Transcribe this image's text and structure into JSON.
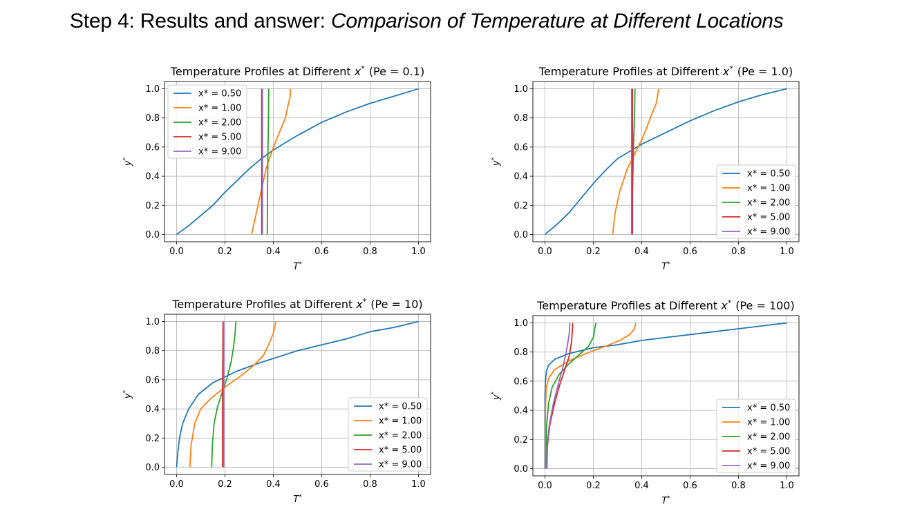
{
  "slide": {
    "title_prefix": "Step 4: Results and answer: ",
    "title_emph": "Comparison of Temperature at Different Locations"
  },
  "chart_data": [
    {
      "type": "line",
      "title_text": "Temperature Profiles at Different",
      "title_var": "x",
      "title_sup": "*",
      "title_pe": "(Pe = 0.1)",
      "xlabel": "T",
      "xlabel_sup": "*",
      "ylabel": "y",
      "ylabel_sup": "*",
      "xlim": [
        0.0,
        1.0
      ],
      "ylim": [
        0.0,
        1.0
      ],
      "xticks": [
        "0.0",
        "0.2",
        "0.4",
        "0.6",
        "0.8",
        "1.0"
      ],
      "yticks": [
        "0.0",
        "0.2",
        "0.4",
        "0.6",
        "0.8",
        "1.0"
      ],
      "grid": true,
      "legend_position": "upper-left",
      "series": [
        {
          "name": "x* = 0.50",
          "color": "#1f77b4",
          "points": [
            [
              0.0,
              0.0
            ],
            [
              0.05,
              0.06
            ],
            [
              0.1,
              0.13
            ],
            [
              0.15,
              0.2
            ],
            [
              0.2,
              0.29
            ],
            [
              0.25,
              0.37
            ],
            [
              0.3,
              0.45
            ],
            [
              0.35,
              0.52
            ],
            [
              0.4,
              0.58
            ],
            [
              0.5,
              0.68
            ],
            [
              0.6,
              0.77
            ],
            [
              0.7,
              0.84
            ],
            [
              0.8,
              0.9
            ],
            [
              0.9,
              0.95
            ],
            [
              1.0,
              1.0
            ]
          ]
        },
        {
          "name": "x* = 1.00",
          "color": "#ff7f0e",
          "points": [
            [
              0.31,
              0.0
            ],
            [
              0.33,
              0.15
            ],
            [
              0.35,
              0.3
            ],
            [
              0.37,
              0.45
            ],
            [
              0.39,
              0.55
            ],
            [
              0.41,
              0.64
            ],
            [
              0.43,
              0.72
            ],
            [
              0.45,
              0.8
            ],
            [
              0.46,
              0.88
            ],
            [
              0.47,
              0.95
            ],
            [
              0.47,
              1.0
            ]
          ]
        },
        {
          "name": "x* = 2.00",
          "color": "#2ca02c",
          "points": [
            [
              0.375,
              0.0
            ],
            [
              0.376,
              0.3
            ],
            [
              0.378,
              0.6
            ],
            [
              0.38,
              0.8
            ],
            [
              0.381,
              1.0
            ]
          ]
        },
        {
          "name": "x* = 5.00",
          "color": "#d62728",
          "points": [
            [
              0.352,
              0.0
            ],
            [
              0.352,
              1.0
            ]
          ]
        },
        {
          "name": "x* = 9.00",
          "color": "#9467bd",
          "points": [
            [
              0.355,
              0.0
            ],
            [
              0.355,
              1.0
            ]
          ]
        }
      ]
    },
    {
      "type": "line",
      "title_text": "Temperature Profiles at Different",
      "title_var": "x",
      "title_sup": "*",
      "title_pe": "(Pe = 1.0)",
      "xlabel": "T",
      "xlabel_sup": "*",
      "ylabel": "y",
      "ylabel_sup": "*",
      "xlim": [
        0.0,
        1.0
      ],
      "ylim": [
        0.0,
        1.0
      ],
      "xticks": [
        "0.0",
        "0.2",
        "0.4",
        "0.6",
        "0.8",
        "1.0"
      ],
      "yticks": [
        "0.0",
        "0.2",
        "0.4",
        "0.6",
        "0.8",
        "1.0"
      ],
      "grid": true,
      "legend_position": "lower-right",
      "series": [
        {
          "name": "x* = 0.50",
          "color": "#1f77b4",
          "points": [
            [
              0.0,
              0.0
            ],
            [
              0.05,
              0.07
            ],
            [
              0.1,
              0.15
            ],
            [
              0.15,
              0.25
            ],
            [
              0.2,
              0.35
            ],
            [
              0.25,
              0.44
            ],
            [
              0.3,
              0.52
            ],
            [
              0.35,
              0.57
            ],
            [
              0.4,
              0.62
            ],
            [
              0.5,
              0.7
            ],
            [
              0.6,
              0.78
            ],
            [
              0.7,
              0.85
            ],
            [
              0.8,
              0.91
            ],
            [
              0.9,
              0.96
            ],
            [
              1.0,
              1.0
            ]
          ]
        },
        {
          "name": "x* = 1.00",
          "color": "#ff7f0e",
          "points": [
            [
              0.28,
              0.0
            ],
            [
              0.29,
              0.15
            ],
            [
              0.31,
              0.3
            ],
            [
              0.34,
              0.45
            ],
            [
              0.37,
              0.55
            ],
            [
              0.4,
              0.65
            ],
            [
              0.42,
              0.73
            ],
            [
              0.44,
              0.82
            ],
            [
              0.46,
              0.9
            ],
            [
              0.47,
              1.0
            ]
          ]
        },
        {
          "name": "x* = 2.00",
          "color": "#2ca02c",
          "points": [
            [
              0.36,
              0.0
            ],
            [
              0.362,
              0.3
            ],
            [
              0.366,
              0.6
            ],
            [
              0.37,
              0.8
            ],
            [
              0.372,
              1.0
            ]
          ]
        },
        {
          "name": "x* = 5.00",
          "color": "#d62728",
          "points": [
            [
              0.362,
              0.0
            ],
            [
              0.362,
              1.0
            ]
          ]
        },
        {
          "name": "x* = 9.00",
          "color": "#9467bd",
          "points": [
            [
              0.358,
              0.0
            ],
            [
              0.358,
              1.0
            ]
          ]
        }
      ]
    },
    {
      "type": "line",
      "title_text": "Temperature Profiles at Different",
      "title_var": "x",
      "title_sup": "*",
      "title_pe": "(Pe = 10)",
      "xlabel": "T",
      "xlabel_sup": "*",
      "ylabel": "y",
      "ylabel_sup": "*",
      "xlim": [
        0.0,
        1.0
      ],
      "ylim": [
        0.0,
        1.0
      ],
      "xticks": [
        "0.0",
        "0.2",
        "0.4",
        "0.6",
        "0.8",
        "1.0"
      ],
      "yticks": [
        "0.0",
        "0.2",
        "0.4",
        "0.6",
        "0.8",
        "1.0"
      ],
      "grid": true,
      "legend_position": "lower-right",
      "series": [
        {
          "name": "x* = 0.50",
          "color": "#1f77b4",
          "points": [
            [
              0.0,
              0.0
            ],
            [
              0.005,
              0.1
            ],
            [
              0.012,
              0.2
            ],
            [
              0.025,
              0.3
            ],
            [
              0.05,
              0.4
            ],
            [
              0.09,
              0.5
            ],
            [
              0.15,
              0.58
            ],
            [
              0.25,
              0.66
            ],
            [
              0.35,
              0.72
            ],
            [
              0.5,
              0.8
            ],
            [
              0.6,
              0.84
            ],
            [
              0.7,
              0.88
            ],
            [
              0.8,
              0.93
            ],
            [
              0.9,
              0.96
            ],
            [
              1.0,
              1.0
            ]
          ]
        },
        {
          "name": "x* = 1.00",
          "color": "#ff7f0e",
          "points": [
            [
              0.055,
              0.0
            ],
            [
              0.06,
              0.15
            ],
            [
              0.075,
              0.3
            ],
            [
              0.1,
              0.4
            ],
            [
              0.14,
              0.47
            ],
            [
              0.2,
              0.55
            ],
            [
              0.26,
              0.62
            ],
            [
              0.32,
              0.7
            ],
            [
              0.36,
              0.77
            ],
            [
              0.38,
              0.84
            ],
            [
              0.4,
              0.92
            ],
            [
              0.41,
              1.0
            ]
          ]
        },
        {
          "name": "x* = 2.00",
          "color": "#2ca02c",
          "points": [
            [
              0.145,
              0.0
            ],
            [
              0.148,
              0.15
            ],
            [
              0.155,
              0.3
            ],
            [
              0.17,
              0.42
            ],
            [
              0.19,
              0.52
            ],
            [
              0.21,
              0.62
            ],
            [
              0.225,
              0.72
            ],
            [
              0.235,
              0.82
            ],
            [
              0.242,
              0.92
            ],
            [
              0.245,
              1.0
            ]
          ]
        },
        {
          "name": "x* = 5.00",
          "color": "#d62728",
          "points": [
            [
              0.19,
              0.0
            ],
            [
              0.19,
              0.5
            ],
            [
              0.192,
              1.0
            ]
          ]
        },
        {
          "name": "x* = 9.00",
          "color": "#9467bd",
          "points": [
            [
              0.195,
              0.0
            ],
            [
              0.195,
              1.0
            ]
          ]
        }
      ]
    },
    {
      "type": "line",
      "title_text": "Temperature Profiles at Different",
      "title_var": "x",
      "title_sup": "*",
      "title_pe": "(Pe = 100)",
      "xlabel": "T",
      "xlabel_sup": "*",
      "ylabel": "y",
      "ylabel_sup": "*",
      "xlim": [
        0.0,
        1.0
      ],
      "ylim": [
        0.0,
        1.0
      ],
      "xticks": [
        "0.0",
        "0.2",
        "0.4",
        "0.6",
        "0.8",
        "1.0"
      ],
      "yticks": [
        "0.0",
        "0.2",
        "0.4",
        "0.6",
        "0.8",
        "1.0"
      ],
      "grid": true,
      "legend_position": "lower-right",
      "series": [
        {
          "name": "x* = 0.50",
          "color": "#1f77b4",
          "points": [
            [
              0.0,
              0.0
            ],
            [
              0.0,
              0.5
            ],
            [
              0.002,
              0.6
            ],
            [
              0.006,
              0.67
            ],
            [
              0.015,
              0.71
            ],
            [
              0.04,
              0.75
            ],
            [
              0.1,
              0.79
            ],
            [
              0.2,
              0.83
            ],
            [
              0.3,
              0.85
            ],
            [
              0.4,
              0.88
            ],
            [
              0.5,
              0.9
            ],
            [
              0.6,
              0.92
            ],
            [
              0.7,
              0.94
            ],
            [
              0.8,
              0.96
            ],
            [
              0.9,
              0.98
            ],
            [
              1.0,
              1.0
            ]
          ]
        },
        {
          "name": "x* = 1.00",
          "color": "#ff7f0e",
          "points": [
            [
              0.002,
              0.0
            ],
            [
              0.002,
              0.4
            ],
            [
              0.005,
              0.55
            ],
            [
              0.015,
              0.62
            ],
            [
              0.04,
              0.68
            ],
            [
              0.1,
              0.74
            ],
            [
              0.17,
              0.79
            ],
            [
              0.25,
              0.84
            ],
            [
              0.31,
              0.88
            ],
            [
              0.35,
              0.92
            ],
            [
              0.37,
              0.96
            ],
            [
              0.375,
              1.0
            ]
          ]
        },
        {
          "name": "x* = 2.00",
          "color": "#2ca02c",
          "points": [
            [
              0.005,
              0.0
            ],
            [
              0.007,
              0.3
            ],
            [
              0.015,
              0.45
            ],
            [
              0.03,
              0.56
            ],
            [
              0.06,
              0.65
            ],
            [
              0.1,
              0.72
            ],
            [
              0.14,
              0.78
            ],
            [
              0.18,
              0.84
            ],
            [
              0.2,
              0.9
            ],
            [
              0.21,
              1.0
            ]
          ]
        },
        {
          "name": "x* = 5.00",
          "color": "#d62728",
          "points": [
            [
              0.008,
              0.0
            ],
            [
              0.01,
              0.15
            ],
            [
              0.02,
              0.3
            ],
            [
              0.04,
              0.45
            ],
            [
              0.06,
              0.57
            ],
            [
              0.08,
              0.67
            ],
            [
              0.1,
              0.77
            ],
            [
              0.11,
              0.87
            ],
            [
              0.115,
              1.0
            ]
          ]
        },
        {
          "name": "x* = 9.00",
          "color": "#9467bd",
          "points": [
            [
              0.007,
              0.0
            ],
            [
              0.009,
              0.15
            ],
            [
              0.018,
              0.3
            ],
            [
              0.035,
              0.45
            ],
            [
              0.055,
              0.58
            ],
            [
              0.075,
              0.7
            ],
            [
              0.09,
              0.82
            ],
            [
              0.1,
              0.92
            ],
            [
              0.103,
              1.0
            ]
          ]
        }
      ]
    }
  ]
}
